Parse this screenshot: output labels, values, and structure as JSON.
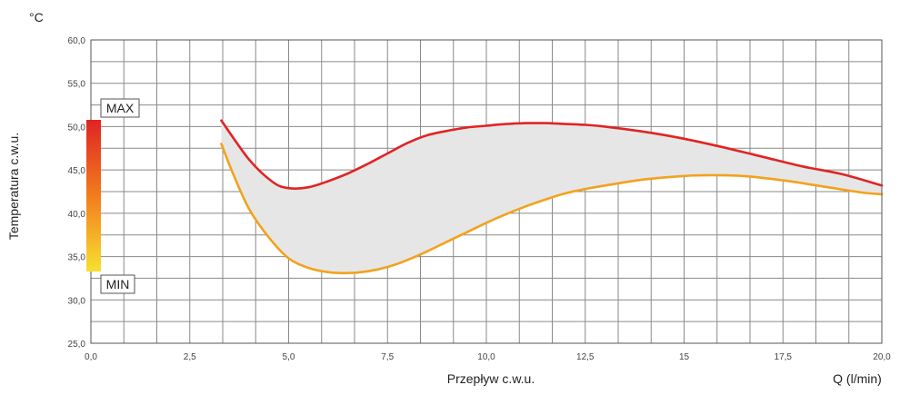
{
  "chart_data": {
    "type": "area",
    "y_unit": "°C",
    "ylabel": "Temperatura c.w.u.",
    "xlabel": "Przepływ c.w.u.",
    "x_unit_label": "Q (l/min)",
    "xlim": [
      0,
      20
    ],
    "ylim": [
      25,
      60
    ],
    "x_ticks": [
      "0,0",
      "2,5",
      "5,0",
      "7,5",
      "10,0",
      "12,5",
      "15",
      "17,5",
      "20,0"
    ],
    "x_tick_values": [
      0,
      2.5,
      5,
      7.5,
      10,
      12.5,
      15,
      17.5,
      20
    ],
    "y_ticks": [
      "25,0",
      "30,0",
      "35,0",
      "40,0",
      "45,0",
      "50,0",
      "55,0",
      "60,0"
    ],
    "y_tick_values": [
      25,
      30,
      35,
      40,
      45,
      50,
      55,
      60
    ],
    "grid": true,
    "series": [
      {
        "key": "max",
        "color": "#e02424",
        "x": [
          3.3,
          4.0,
          4.6,
          5.0,
          5.5,
          6.0,
          6.5,
          7.0,
          7.5,
          8.0,
          8.5,
          9.0,
          9.5,
          10.0,
          10.5,
          11.0,
          11.5,
          12.0,
          12.5,
          13.0,
          14.0,
          15.0,
          16.0,
          17.0,
          18.0,
          19.0,
          20.0
        ],
        "values": [
          50.7,
          46.2,
          43.6,
          42.9,
          43.0,
          43.7,
          44.6,
          45.7,
          46.9,
          48.1,
          49.0,
          49.5,
          49.9,
          50.1,
          50.3,
          50.4,
          50.4,
          50.3,
          50.2,
          50.0,
          49.4,
          48.6,
          47.6,
          46.5,
          45.4,
          44.5,
          43.2
        ]
      },
      {
        "key": "min",
        "color": "#f2a21d",
        "x": [
          3.3,
          3.6,
          4.0,
          4.5,
          5.0,
          5.5,
          6.0,
          6.5,
          7.0,
          7.5,
          8.0,
          8.5,
          9.0,
          9.5,
          10.0,
          10.5,
          11.0,
          11.5,
          12.0,
          12.5,
          13.0,
          14.0,
          15.0,
          15.7,
          16.5,
          17.5,
          18.5,
          19.5,
          20.0
        ],
        "values": [
          48.0,
          44.5,
          40.5,
          37.2,
          34.8,
          33.7,
          33.2,
          33.1,
          33.3,
          33.8,
          34.6,
          35.6,
          36.7,
          37.8,
          38.9,
          39.9,
          40.8,
          41.6,
          42.3,
          42.8,
          43.2,
          43.9,
          44.3,
          44.4,
          44.3,
          43.8,
          43.1,
          42.4,
          42.2
        ]
      }
    ],
    "fill_color": "#e6e6e6",
    "scale": {
      "max_label": "MAX",
      "min_label": "MIN",
      "gradient_top": "#e02424",
      "gradient_mid": "#f27c1d",
      "gradient_bottom": "#f7e030"
    }
  }
}
